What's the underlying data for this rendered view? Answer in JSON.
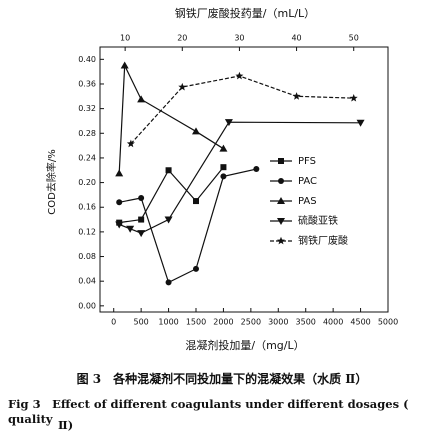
{
  "chart_data": {
    "type": "line",
    "x_label": "混凝剂投加量/（mg/L）",
    "x2_label": "钢铁厂废酸投药量/（mL/L）",
    "y_label": "COD去除率/%",
    "xlim": [
      -250,
      5000
    ],
    "xticks": [
      0,
      500,
      1000,
      1500,
      2000,
      2500,
      3000,
      3500,
      4000,
      4500,
      5000
    ],
    "x2lim": [
      5.6,
      56
    ],
    "x2ticks": [
      10,
      20,
      30,
      40,
      50
    ],
    "ylim": [
      -0.01,
      0.42
    ],
    "yticks": [
      {
        "value": 0,
        "label": "0.00"
      },
      {
        "value": 0.04,
        "label": "0.04"
      },
      {
        "value": 0.08,
        "label": "0.08"
      },
      {
        "value": 0.12,
        "label": "0.12"
      },
      {
        "value": 0.16,
        "label": "0.16"
      },
      {
        "value": 0.2,
        "label": "0.20"
      },
      {
        "value": 0.24,
        "label": "0.24"
      },
      {
        "value": 0.28,
        "label": "0.28"
      },
      {
        "value": 0.32,
        "label": "0.32"
      },
      {
        "value": 0.36,
        "label": "0.36"
      },
      {
        "value": 0.4,
        "label": "0.40"
      }
    ],
    "series": [
      {
        "name": "PFS",
        "color": "#111",
        "marker": "square",
        "x": [
          100,
          500,
          1000,
          1500,
          2000
        ],
        "values": [
          0.135,
          0.14,
          0.22,
          0.17,
          0.225
        ]
      },
      {
        "name": "PAC",
        "color": "#111",
        "marker": "circle",
        "x": [
          100,
          500,
          1000,
          1500,
          2000,
          2600
        ],
        "values": [
          0.168,
          0.175,
          0.038,
          0.06,
          0.21,
          0.222
        ]
      },
      {
        "name": "PAS",
        "color": "#111",
        "marker": "triangle",
        "x": [
          100,
          200,
          500,
          1500,
          2000
        ],
        "values": [
          0.215,
          0.39,
          0.335,
          0.283,
          0.255
        ]
      },
      {
        "name": "硫酸亚铁",
        "color": "#111",
        "marker": "triangle-down",
        "x": [
          100,
          300,
          500,
          1000,
          2100,
          4500
        ],
        "values": [
          0.132,
          0.125,
          0.118,
          0.14,
          0.298,
          0.297
        ]
      },
      {
        "name": "钢铁厂废酸",
        "color": "#111",
        "marker": "star",
        "dashed": true,
        "axis": "x2",
        "x": [
          11,
          20,
          30,
          40,
          50
        ],
        "values": [
          0.263,
          0.355,
          0.373,
          0.34,
          0.337
        ]
      }
    ]
  },
  "caption": {
    "cn": "图 3　各种混凝剂不同投加量下的混凝效果（水质 Ⅱ）",
    "en_1": "Fig 3　Effect of different coagulants under different dosages ( quality",
    "en_2": "Ⅱ)"
  }
}
